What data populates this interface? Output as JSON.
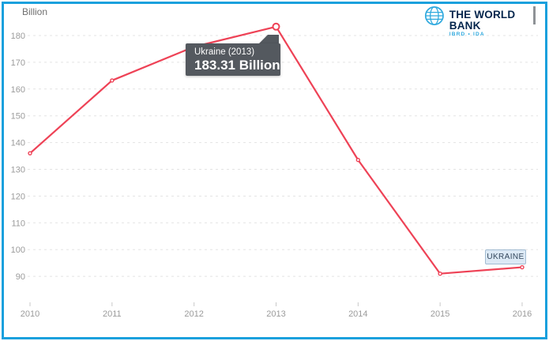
{
  "window": {
    "border_color": "#1aa0dd",
    "background": "#ffffff"
  },
  "header": {
    "unit_label": "Billion",
    "logo": {
      "title": "THE WORLD BANK",
      "subtitle": "IBRD • IDA",
      "title_color": "#04254c",
      "accent_color": "#2fa9de"
    }
  },
  "tooltip": {
    "title": "Ukraine (2013)",
    "value": "183.31 Billion",
    "background": "#54595f",
    "text_color": "#ffffff"
  },
  "series_label": {
    "text": "UKRAINE",
    "background": "#dce9f5",
    "border_color": "#a3bcd2",
    "text_color": "#33475c"
  },
  "chart_data": {
    "type": "line",
    "title": "",
    "series_name": "Ukraine",
    "unit": "Billion",
    "x": [
      2010,
      2011,
      2012,
      2013,
      2014,
      2015,
      2016
    ],
    "values": [
      136.0,
      163.2,
      175.8,
      183.31,
      133.5,
      91.0,
      93.4
    ],
    "highlight_index": 3,
    "highlight_label": "183.31 Billion",
    "yticks": [
      90,
      100,
      110,
      120,
      130,
      140,
      150,
      160,
      170,
      180
    ],
    "ylim": [
      90,
      180
    ],
    "ylabel": "Billion",
    "xlabel": "",
    "grid": "horizontal-dashed",
    "legend_position": "right-inline",
    "line_color": "#ee4256",
    "grid_color": "#e3e3e3",
    "axis_text_color": "#9b9b9b"
  }
}
